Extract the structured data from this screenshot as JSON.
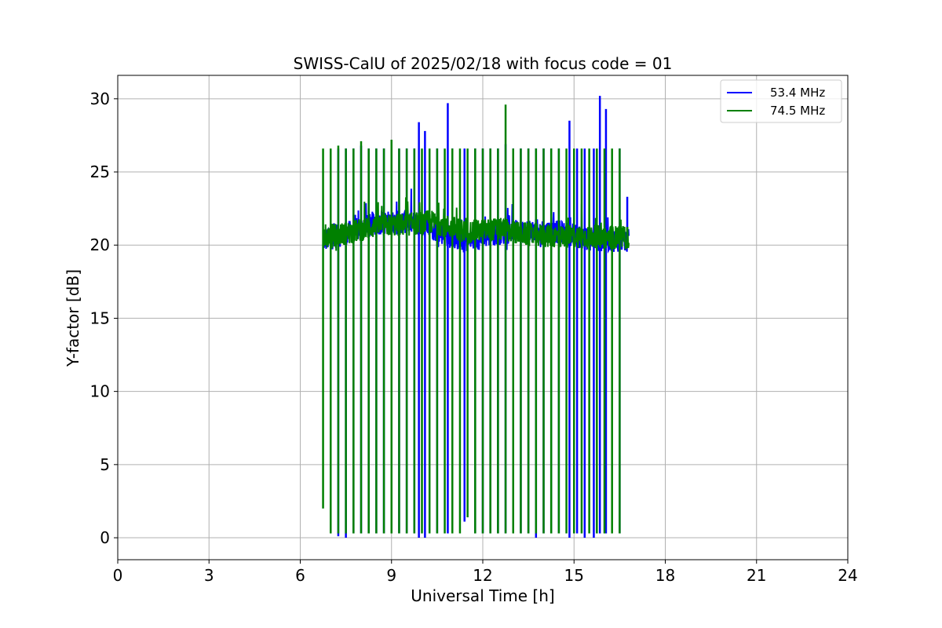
{
  "chart_data": {
    "type": "line",
    "title": "SWISS-CalU of 2025/02/18 with focus code = 01",
    "xlabel": "Universal Time [h]",
    "ylabel": "Y-factor [dB]",
    "xlim": [
      0,
      24
    ],
    "ylim": [
      -1.5,
      31.6
    ],
    "xticks": [
      "0",
      "3",
      "6",
      "9",
      "12",
      "15",
      "18",
      "21",
      "24"
    ],
    "yticks": [
      "0",
      "5",
      "10",
      "15",
      "20",
      "25",
      "30"
    ],
    "grid": true,
    "legend_position": "top-right",
    "series": [
      {
        "name": "53.4 MHz",
        "color": "#0000ff",
        "baseline": [
          [
            6.75,
            20.3
          ],
          [
            7.5,
            20.8
          ],
          [
            8.5,
            21.5
          ],
          [
            9.5,
            21.6
          ],
          [
            10.3,
            21.2
          ],
          [
            11.0,
            20.5
          ],
          [
            11.5,
            20.3
          ],
          [
            12.5,
            20.8
          ],
          [
            13.5,
            21.0
          ],
          [
            14.5,
            20.9
          ],
          [
            15.5,
            20.4
          ],
          [
            16.8,
            20.3
          ]
        ],
        "spikes": [
          {
            "x": 7.0,
            "high": 26.0,
            "low": 0.3
          },
          {
            "x": 7.25,
            "high": 26.6,
            "low": 0.1
          },
          {
            "x": 7.5,
            "high": 26.6,
            "low": 0.0
          },
          {
            "x": 7.75,
            "high": 26.6,
            "low": 0.3
          },
          {
            "x": 8.0,
            "high": 26.8,
            "low": 0.3
          },
          {
            "x": 8.25,
            "high": 26.6,
            "low": 0.3
          },
          {
            "x": 8.5,
            "high": 26.6,
            "low": 0.3
          },
          {
            "x": 8.75,
            "high": 26.6,
            "low": 0.3
          },
          {
            "x": 9.0,
            "high": 26.6,
            "low": 0.3
          },
          {
            "x": 9.25,
            "high": 26.6,
            "low": 0.3
          },
          {
            "x": 9.5,
            "high": 26.6,
            "low": 0.3
          },
          {
            "x": 9.75,
            "high": 26.6,
            "low": 0.3
          },
          {
            "x": 9.9,
            "high": 28.4,
            "low": 0.0
          },
          {
            "x": 10.1,
            "high": 27.8,
            "low": 0.0
          },
          {
            "x": 10.5,
            "high": 26.6,
            "low": 0.3
          },
          {
            "x": 10.85,
            "high": 29.7,
            "low": 0.3
          },
          {
            "x": 11.0,
            "high": 26.6,
            "low": 0.3
          },
          {
            "x": 11.4,
            "high": 26.6,
            "low": 1.1
          },
          {
            "x": 11.75,
            "high": 26.6,
            "low": 0.3
          },
          {
            "x": 12.0,
            "high": 26.6,
            "low": 0.3
          },
          {
            "x": 12.25,
            "high": 26.6,
            "low": 0.3
          },
          {
            "x": 12.5,
            "high": 26.6,
            "low": 0.3
          },
          {
            "x": 12.75,
            "high": 26.9,
            "low": 0.3
          },
          {
            "x": 13.0,
            "high": 26.6,
            "low": 0.3
          },
          {
            "x": 13.25,
            "high": 26.6,
            "low": 0.3
          },
          {
            "x": 13.5,
            "high": 26.6,
            "low": 0.3
          },
          {
            "x": 13.75,
            "high": 26.6,
            "low": 0.0
          },
          {
            "x": 14.0,
            "high": 26.6,
            "low": 0.3
          },
          {
            "x": 14.25,
            "high": 26.6,
            "low": 0.3
          },
          {
            "x": 14.5,
            "high": 26.6,
            "low": 0.3
          },
          {
            "x": 14.85,
            "high": 28.5,
            "low": 0.0
          },
          {
            "x": 15.1,
            "high": 26.6,
            "low": 0.3
          },
          {
            "x": 15.35,
            "high": 26.6,
            "low": 0.0
          },
          {
            "x": 15.65,
            "high": 26.6,
            "low": 0.0
          },
          {
            "x": 15.85,
            "high": 30.2,
            "low": 0.3
          },
          {
            "x": 16.05,
            "high": 29.3,
            "low": 0.3
          },
          {
            "x": 16.5,
            "high": 26.6,
            "low": 0.3
          },
          {
            "x": 16.75,
            "high": 23.3,
            "low": 20.0
          }
        ]
      },
      {
        "name": "74.5 MHz",
        "color": "#008000",
        "baseline": [
          [
            6.75,
            20.6
          ],
          [
            7.5,
            20.8
          ],
          [
            8.5,
            21.3
          ],
          [
            9.5,
            21.4
          ],
          [
            10.3,
            21.6
          ],
          [
            11.0,
            21.2
          ],
          [
            11.5,
            20.9
          ],
          [
            12.5,
            21.1
          ],
          [
            13.5,
            20.7
          ],
          [
            14.5,
            20.6
          ],
          [
            15.5,
            20.6
          ],
          [
            16.8,
            20.5
          ]
        ],
        "spikes": [
          {
            "x": 6.75,
            "high": 26.6,
            "low": 2.0
          },
          {
            "x": 7.0,
            "high": 26.6,
            "low": 0.3
          },
          {
            "x": 7.25,
            "high": 26.8,
            "low": 0.3
          },
          {
            "x": 7.5,
            "high": 26.6,
            "low": 0.3
          },
          {
            "x": 7.75,
            "high": 26.6,
            "low": 0.3
          },
          {
            "x": 8.0,
            "high": 27.1,
            "low": 0.3
          },
          {
            "x": 8.25,
            "high": 26.6,
            "low": 0.3
          },
          {
            "x": 8.5,
            "high": 26.6,
            "low": 0.3
          },
          {
            "x": 8.75,
            "high": 26.6,
            "low": 0.3
          },
          {
            "x": 9.0,
            "high": 27.2,
            "low": 0.3
          },
          {
            "x": 9.25,
            "high": 26.6,
            "low": 0.3
          },
          {
            "x": 9.5,
            "high": 26.6,
            "low": 0.3
          },
          {
            "x": 9.75,
            "high": 26.6,
            "low": 0.3
          },
          {
            "x": 10.0,
            "high": 26.6,
            "low": 0.3
          },
          {
            "x": 10.25,
            "high": 26.6,
            "low": 0.3
          },
          {
            "x": 10.5,
            "high": 26.6,
            "low": 0.3
          },
          {
            "x": 10.75,
            "high": 26.6,
            "low": 0.3
          },
          {
            "x": 11.0,
            "high": 26.6,
            "low": 0.3
          },
          {
            "x": 11.25,
            "high": 26.6,
            "low": 0.3
          },
          {
            "x": 11.5,
            "high": 26.6,
            "low": 1.4
          },
          {
            "x": 11.75,
            "high": 26.6,
            "low": 0.3
          },
          {
            "x": 12.0,
            "high": 26.6,
            "low": 0.3
          },
          {
            "x": 12.25,
            "high": 26.6,
            "low": 0.3
          },
          {
            "x": 12.5,
            "high": 26.6,
            "low": 0.3
          },
          {
            "x": 12.75,
            "high": 29.6,
            "low": 0.3
          },
          {
            "x": 13.0,
            "high": 26.6,
            "low": 0.3
          },
          {
            "x": 13.25,
            "high": 26.6,
            "low": 0.3
          },
          {
            "x": 13.5,
            "high": 26.6,
            "low": 0.3
          },
          {
            "x": 13.75,
            "high": 26.6,
            "low": 0.3
          },
          {
            "x": 14.0,
            "high": 26.6,
            "low": 0.3
          },
          {
            "x": 14.25,
            "high": 26.6,
            "low": 0.3
          },
          {
            "x": 14.5,
            "high": 26.6,
            "low": 0.3
          },
          {
            "x": 14.75,
            "high": 26.6,
            "low": 0.3
          },
          {
            "x": 15.0,
            "high": 26.6,
            "low": 0.3
          },
          {
            "x": 15.25,
            "high": 26.6,
            "low": 0.3
          },
          {
            "x": 15.5,
            "high": 26.6,
            "low": 0.3
          },
          {
            "x": 15.75,
            "high": 26.6,
            "low": 0.3
          },
          {
            "x": 16.0,
            "high": 26.6,
            "low": 0.3
          },
          {
            "x": 16.25,
            "high": 26.6,
            "low": 0.3
          },
          {
            "x": 16.5,
            "high": 26.6,
            "low": 0.3
          }
        ]
      }
    ]
  }
}
